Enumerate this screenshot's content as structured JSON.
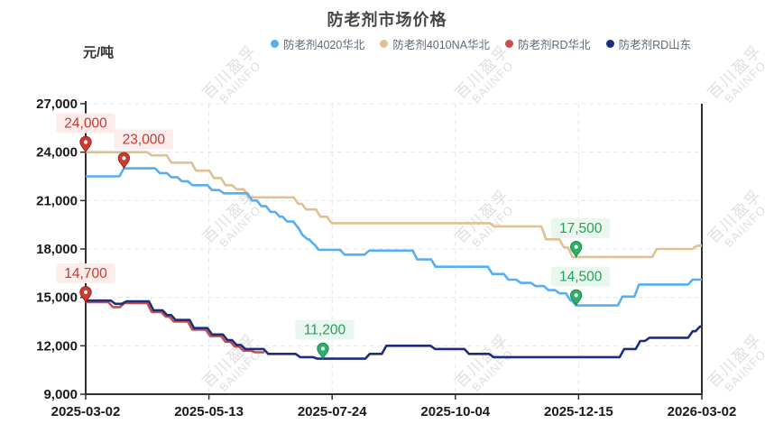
{
  "title": "防老剂市场价格",
  "watermark": {
    "text_cn": "百川盈孚",
    "text_en": "BAIINFO"
  },
  "colors": {
    "grid": "#dfe8f3",
    "axis": "#2f2f2f",
    "tick_label": "#1a1a1a",
    "watermark": "#d8d8d8",
    "annotation": {
      "red": {
        "text": "#c23a36",
        "bg": "#fcecea",
        "pin": "#cf3a30",
        "pin_border": "#9c241c"
      },
      "green": {
        "text": "#21a15a",
        "bg": "#e9f7ee",
        "pin": "#2fae68",
        "pin_border": "#1d8a4e"
      }
    }
  },
  "chart_data": {
    "type": "line",
    "step": true,
    "title": "防老剂市场价格",
    "xlabel": "",
    "ylabel": "元/吨",
    "ylim": [
      9000,
      27000
    ],
    "ytick_interval": 3000,
    "yticks": [
      "9,000",
      "12,000",
      "15,000",
      "18,000",
      "21,000",
      "24,000",
      "27,000"
    ],
    "xticks": [
      "2025-03-02",
      "2025-05-13",
      "2025-07-24",
      "2025-10-04",
      "2025-12-15",
      "2026-03-02"
    ],
    "grid": true,
    "legend_position": "top",
    "series": [
      {
        "name": "防老剂4010NA华北",
        "color": "#e0c18f",
        "end": 1.0,
        "points": [
          [
            0.0,
            24000
          ],
          [
            0.107,
            23800
          ],
          [
            0.139,
            23350
          ],
          [
            0.179,
            22850
          ],
          [
            0.208,
            22400
          ],
          [
            0.227,
            21950
          ],
          [
            0.245,
            21700
          ],
          [
            0.264,
            21200
          ],
          [
            0.345,
            20800
          ],
          [
            0.358,
            20450
          ],
          [
            0.381,
            20000
          ],
          [
            0.399,
            19600
          ],
          [
            0.663,
            19400
          ],
          [
            0.747,
            18600
          ],
          [
            0.776,
            18100
          ],
          [
            0.79,
            17500
          ],
          [
            0.927,
            18000
          ],
          [
            0.992,
            18200
          ]
        ]
      },
      {
        "name": "防老剂4020华北",
        "color": "#58aef3",
        "end": 1.0,
        "points": [
          [
            0.0,
            22500
          ],
          [
            0.062,
            23000
          ],
          [
            0.12,
            22700
          ],
          [
            0.139,
            22450
          ],
          [
            0.156,
            22200
          ],
          [
            0.173,
            21950
          ],
          [
            0.205,
            21650
          ],
          [
            0.224,
            21450
          ],
          [
            0.27,
            21000
          ],
          [
            0.285,
            20650
          ],
          [
            0.3,
            20300
          ],
          [
            0.315,
            20000
          ],
          [
            0.327,
            19700
          ],
          [
            0.344,
            19350
          ],
          [
            0.352,
            18850
          ],
          [
            0.36,
            18600
          ],
          [
            0.37,
            18300
          ],
          [
            0.378,
            17950
          ],
          [
            0.42,
            17650
          ],
          [
            0.46,
            17900
          ],
          [
            0.538,
            17350
          ],
          [
            0.568,
            16900
          ],
          [
            0.66,
            16450
          ],
          [
            0.686,
            16100
          ],
          [
            0.706,
            15900
          ],
          [
            0.73,
            15700
          ],
          [
            0.751,
            15450
          ],
          [
            0.769,
            15250
          ],
          [
            0.787,
            14800
          ],
          [
            0.796,
            14500
          ],
          [
            0.871,
            15050
          ],
          [
            0.898,
            15800
          ],
          [
            0.985,
            16100
          ]
        ]
      },
      {
        "name": "防老剂RD华北",
        "color": "#c4504a",
        "end": 0.29,
        "points": [
          [
            0.0,
            14700
          ],
          [
            0.044,
            14400
          ],
          [
            0.063,
            14650
          ],
          [
            0.107,
            14100
          ],
          [
            0.13,
            13800
          ],
          [
            0.143,
            13500
          ],
          [
            0.173,
            13000
          ],
          [
            0.202,
            12600
          ],
          [
            0.227,
            12250
          ],
          [
            0.242,
            11950
          ],
          [
            0.256,
            11700
          ],
          [
            0.275,
            11600
          ]
        ]
      },
      {
        "name": "防老剂RD山东",
        "color": "#1c2f7e",
        "end": 1.0,
        "points": [
          [
            0.0,
            14800
          ],
          [
            0.048,
            14600
          ],
          [
            0.066,
            14750
          ],
          [
            0.11,
            14200
          ],
          [
            0.132,
            13900
          ],
          [
            0.146,
            13600
          ],
          [
            0.176,
            13100
          ],
          [
            0.205,
            12700
          ],
          [
            0.23,
            12350
          ],
          [
            0.245,
            12050
          ],
          [
            0.259,
            11800
          ],
          [
            0.296,
            11500
          ],
          [
            0.348,
            11300
          ],
          [
            0.376,
            11200
          ],
          [
            0.461,
            11500
          ],
          [
            0.488,
            12000
          ],
          [
            0.567,
            11800
          ],
          [
            0.622,
            11500
          ],
          [
            0.662,
            11300
          ],
          [
            0.874,
            11800
          ],
          [
            0.9,
            12300
          ],
          [
            0.915,
            12500
          ],
          [
            0.985,
            12900
          ],
          [
            0.997,
            13200
          ]
        ]
      }
    ],
    "annotations": [
      {
        "text": "23,000",
        "value": 23000,
        "t": 0.062,
        "scheme": "red",
        "label_dx": 22
      },
      {
        "text": "24,000",
        "value": 24000,
        "t": 0.0,
        "scheme": "red",
        "label_dx": 0
      },
      {
        "text": "14,700",
        "value": 14700,
        "t": 0.0,
        "scheme": "red",
        "label_dx": 0
      },
      {
        "text": "11,200",
        "value": 11200,
        "t": 0.385,
        "scheme": "green",
        "label_dx": 2
      },
      {
        "text": "17,500",
        "value": 17500,
        "t": 0.796,
        "scheme": "green",
        "label_dx": 5
      },
      {
        "text": "14,500",
        "value": 14500,
        "t": 0.796,
        "scheme": "green",
        "label_dx": 5
      }
    ]
  }
}
